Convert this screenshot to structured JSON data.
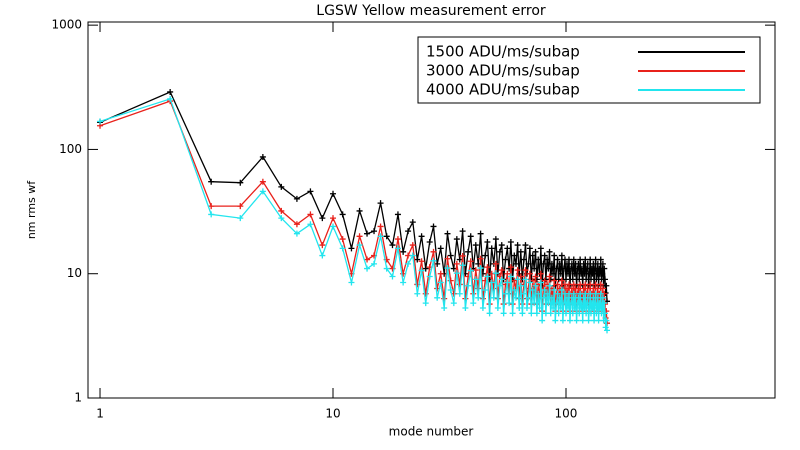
{
  "chart_data": {
    "type": "line",
    "title": "LGSW Yellow measurement error",
    "xlabel": "mode number",
    "ylabel": "nm rms wf",
    "xscale": "log",
    "yscale": "log",
    "legend": "upper right",
    "xlim": [
      0.888,
      789
    ],
    "ylim": [
      1,
      1060
    ],
    "xticks": [
      1,
      10,
      100
    ],
    "yticks": [
      1,
      10,
      100,
      1000
    ],
    "x": [
      1,
      2,
      3,
      4,
      5,
      6,
      7,
      8,
      9,
      10,
      11,
      12,
      13,
      14,
      15,
      16,
      17,
      18,
      19,
      20,
      21,
      22,
      23,
      24,
      25,
      26,
      27,
      28,
      29,
      30,
      31,
      32,
      33,
      34,
      35,
      36,
      37,
      38,
      39,
      40,
      41,
      42,
      43,
      44,
      45,
      46,
      47,
      48,
      49,
      50,
      51,
      52,
      53,
      54,
      55,
      56,
      57,
      58,
      59,
      60,
      61,
      62,
      63,
      64,
      65,
      66,
      67,
      68,
      69,
      70,
      71,
      72,
      73,
      74,
      75,
      76,
      77,
      78,
      79,
      80,
      81,
      82,
      83,
      84,
      85,
      86,
      87,
      88,
      89,
      90,
      91,
      92,
      93,
      94,
      95,
      96,
      97,
      98,
      99,
      100,
      101,
      102,
      103,
      104,
      105,
      106,
      107,
      108,
      109,
      110,
      111,
      112,
      113,
      114,
      115,
      116,
      117,
      118,
      119,
      120,
      121,
      122,
      123,
      124,
      125,
      126,
      127,
      128,
      129,
      130,
      131,
      132,
      133,
      134,
      135,
      136,
      137,
      138,
      139,
      140,
      141,
      142,
      143,
      144,
      145,
      146,
      147,
      148,
      149,
      150
    ],
    "series": [
      {
        "name": "1500 ADU/ms/subap",
        "color": "#000000",
        "values": [
          165,
          290,
          55,
          54,
          87,
          50,
          40,
          46,
          28,
          44,
          30,
          16,
          32,
          21,
          22,
          37,
          20,
          17,
          30,
          15,
          22,
          26,
          13,
          20,
          11,
          18,
          24,
          12,
          16,
          10,
          21,
          14,
          11,
          19,
          13,
          22,
          10,
          15,
          20,
          11,
          17,
          12,
          21,
          10,
          14,
          18,
          9,
          16,
          12,
          19,
          10,
          15,
          17,
          9,
          13,
          16,
          11,
          18,
          9,
          14,
          12,
          17,
          10,
          15,
          9,
          13,
          17,
          10,
          12,
          16,
          9,
          14,
          11,
          15,
          9,
          13,
          10,
          16,
          8,
          12,
          14,
          9,
          13,
          11,
          15,
          9,
          12,
          10,
          14,
          8,
          11,
          13,
          9,
          12,
          10,
          14,
          8,
          11,
          13,
          9,
          12,
          10,
          13,
          8,
          11,
          12,
          9,
          13,
          10,
          12,
          8,
          11,
          12,
          9,
          13,
          10,
          11,
          8,
          12,
          10,
          13,
          9,
          11,
          12,
          8,
          10,
          13,
          9,
          11,
          10,
          12,
          8,
          11,
          13,
          9,
          10,
          12,
          8,
          11,
          10,
          13,
          9,
          10,
          12,
          8,
          11,
          9,
          7,
          8,
          6
        ]
      },
      {
        "name": "3000 ADU/ms/subap",
        "color": "#e8211b",
        "values": [
          155,
          245,
          35,
          35,
          55,
          32,
          25,
          30,
          17,
          28,
          19,
          10,
          20,
          13,
          14,
          24,
          13,
          11,
          19,
          10,
          14,
          17,
          8.2,
          12.6,
          6.9,
          11.3,
          15,
          7.6,
          10,
          6.3,
          13.2,
          8.8,
          6.9,
          12,
          8.2,
          13.9,
          6.3,
          9.5,
          12.6,
          6.9,
          10.7,
          7.6,
          13.2,
          6.3,
          8.8,
          11.3,
          5.7,
          10,
          7.6,
          12,
          6.3,
          9.5,
          10.7,
          5.7,
          8.2,
          10,
          6.9,
          11.3,
          5.7,
          8.8,
          7.6,
          10.7,
          6.3,
          9.5,
          5.7,
          8.2,
          10.7,
          6.3,
          7.6,
          10,
          5.7,
          8.8,
          6.9,
          9.5,
          5.7,
          8.2,
          6.3,
          10,
          5,
          7.6,
          8.8,
          5.7,
          8.2,
          6.9,
          9.5,
          5.7,
          7.6,
          6.3,
          8.8,
          5,
          6.9,
          8.2,
          5.7,
          7.6,
          6.3,
          8.8,
          5,
          6.9,
          8.2,
          5.7,
          7.6,
          6.3,
          8.2,
          5,
          6.9,
          7.6,
          5.7,
          8.2,
          6.3,
          7.6,
          5,
          6.9,
          7.6,
          5.7,
          8.2,
          6.3,
          6.9,
          5,
          7.6,
          6.3,
          8.2,
          5.7,
          6.9,
          7.6,
          5,
          6.3,
          8.2,
          5.7,
          6.9,
          6.3,
          7.6,
          5,
          6.9,
          8.2,
          5.7,
          6.3,
          7.6,
          5,
          6.9,
          6.3,
          8.2,
          5.7,
          6.3,
          7.6,
          5,
          6.9,
          5.7,
          4.4,
          5,
          4
        ]
      },
      {
        "name": "4000 ADU/ms/subap",
        "color": "#22e5ee",
        "values": [
          168,
          255,
          30,
          28,
          46,
          28,
          21,
          25,
          14,
          24,
          16,
          8.5,
          17,
          11,
          12,
          20,
          11,
          9.5,
          16,
          8.5,
          12,
          14,
          6.9,
          10.6,
          5.8,
          9.5,
          12.7,
          6.4,
          8.5,
          5.3,
          11.1,
          7.4,
          5.8,
          10.1,
          6.9,
          11.7,
          5.3,
          8,
          10.6,
          5.8,
          9,
          6.4,
          11.1,
          5.3,
          7.4,
          9.5,
          4.8,
          8.5,
          6.4,
          10.1,
          5.3,
          8,
          9,
          4.8,
          6.9,
          8.5,
          5.8,
          9.5,
          4.8,
          7.4,
          6.4,
          9,
          5.3,
          8,
          4.8,
          6.9,
          9,
          5.3,
          6.4,
          8.5,
          4.8,
          7.4,
          5.8,
          8,
          4.8,
          6.9,
          5.3,
          8.5,
          4.2,
          6.4,
          7.4,
          4.8,
          6.9,
          5.8,
          8,
          4.8,
          6.4,
          5.3,
          7.4,
          4.2,
          5.8,
          6.9,
          4.8,
          6.4,
          5.3,
          7.4,
          4.2,
          5.8,
          6.9,
          4.8,
          6.4,
          5.3,
          6.9,
          4.2,
          5.8,
          6.4,
          4.8,
          6.9,
          5.3,
          6.4,
          4.2,
          5.8,
          6.4,
          4.8,
          6.9,
          5.3,
          5.8,
          4.2,
          6.4,
          5.3,
          6.9,
          4.8,
          5.8,
          6.4,
          4.2,
          5.3,
          6.9,
          4.8,
          5.8,
          5.3,
          6.4,
          4.2,
          5.8,
          6.9,
          4.8,
          5.3,
          6.4,
          4.2,
          5.8,
          5.3,
          6.9,
          4.8,
          5.3,
          6.4,
          4.2,
          5.8,
          4.8,
          3.7,
          4.2,
          3.5
        ]
      }
    ]
  }
}
